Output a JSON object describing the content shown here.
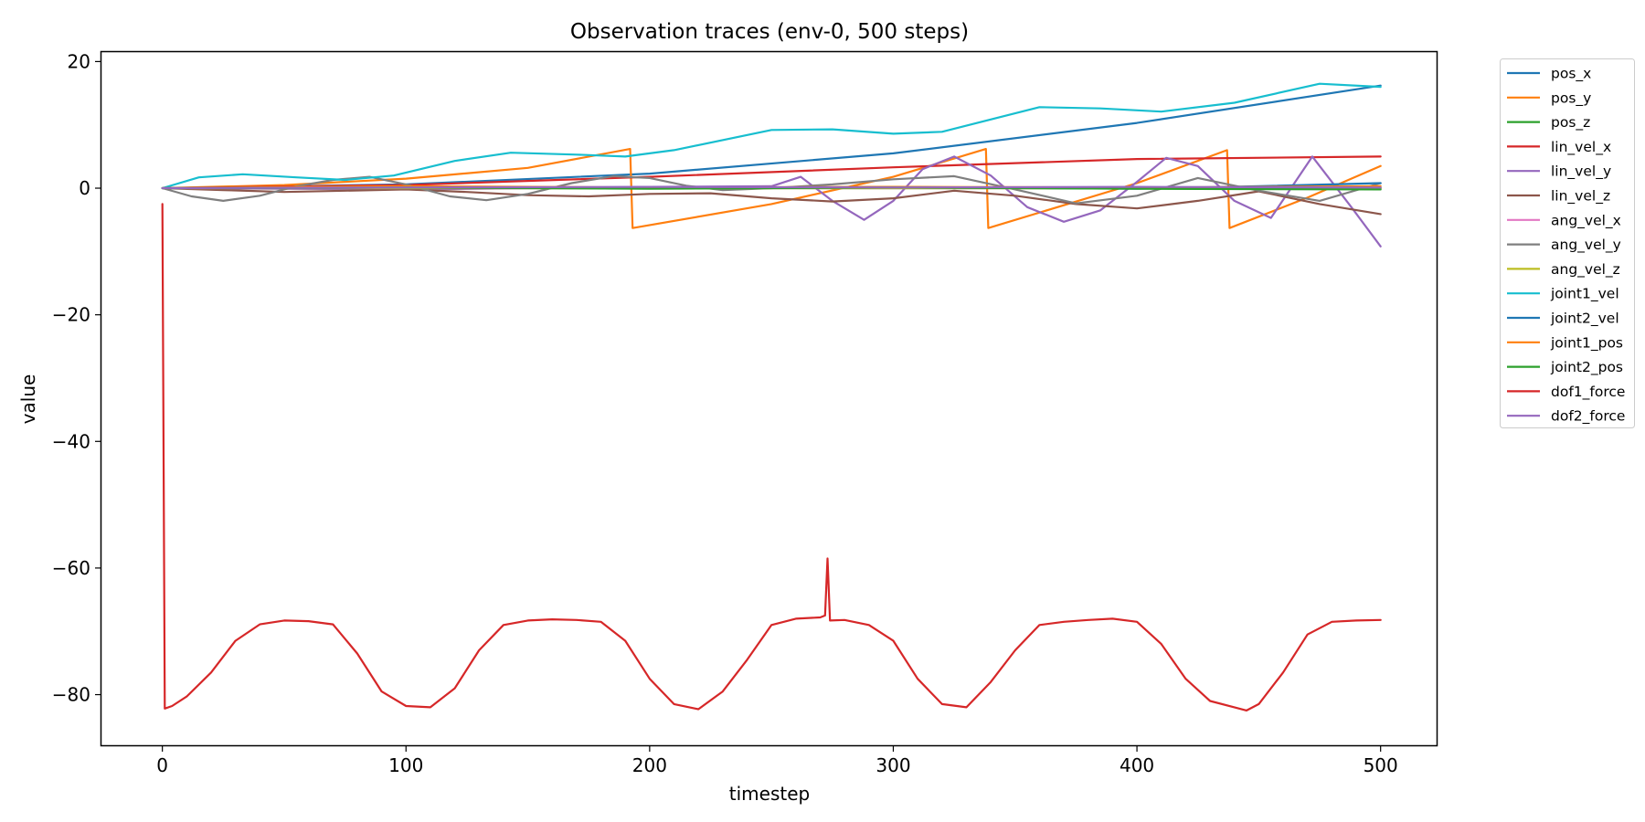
{
  "chart_data": {
    "type": "line",
    "title": "Observation traces (env-0, 500 steps)",
    "xlabel": "timestep",
    "ylabel": "value",
    "xlim": [
      -25,
      523
    ],
    "ylim": [
      -88,
      21.5
    ],
    "xticks": [
      0,
      100,
      200,
      300,
      400,
      500
    ],
    "yticks": [
      20,
      0,
      -20,
      -40,
      -60,
      -80
    ],
    "tick_labels_x": [
      "0",
      "100",
      "200",
      "300",
      "400",
      "500"
    ],
    "tick_labels_y": [
      "20",
      "0",
      "−20",
      "−40",
      "−60",
      "−80"
    ],
    "grid": false,
    "legend_position": "outside-top-right",
    "series": [
      {
        "name": "pos_x",
        "color": "#1f77b4",
        "x": [
          0,
          100,
          200,
          300,
          400,
          500
        ],
        "y": [
          0,
          0.6,
          2.3,
          5.5,
          10.3,
          16.2
        ]
      },
      {
        "name": "pos_y",
        "color": "#ff7f0e",
        "x": [
          0,
          50,
          100,
          150,
          192,
          193,
          250,
          300,
          338,
          339,
          400,
          437,
          438,
          470,
          500
        ],
        "y": [
          0,
          0.5,
          1.5,
          3.2,
          6.2,
          -6.3,
          -2.5,
          1.8,
          6.2,
          -6.3,
          0.8,
          6.0,
          -6.3,
          -1.5,
          3.5
        ]
      },
      {
        "name": "pos_z",
        "color": "#2ca02c",
        "x": [
          0,
          250,
          500
        ],
        "y": [
          0,
          0,
          0
        ]
      },
      {
        "name": "lin_vel_x",
        "color": "#d62728",
        "x": [
          0,
          100,
          200,
          300,
          400,
          500
        ],
        "y": [
          0,
          0.5,
          1.8,
          3.3,
          4.6,
          5.0
        ]
      },
      {
        "name": "lin_vel_y",
        "color": "#9467bd",
        "x": [
          0,
          100,
          200,
          250,
          262,
          275,
          288,
          300,
          312,
          325,
          340,
          355,
          370,
          385,
          400,
          412,
          425,
          440,
          455,
          472,
          488,
          500
        ],
        "y": [
          0,
          -0.2,
          0.2,
          0.3,
          1.8,
          -2.0,
          -5.0,
          -2.0,
          3.0,
          5.0,
          2.0,
          -3.0,
          -5.3,
          -3.5,
          1.0,
          4.8,
          3.5,
          -2.0,
          -4.7,
          5.0,
          -3.0,
          -9.2
        ]
      },
      {
        "name": "lin_vel_z",
        "color": "#8c564b",
        "x": [
          0,
          25,
          50,
          75,
          100,
          125,
          150,
          175,
          200,
          225,
          250,
          275,
          300,
          325,
          350,
          375,
          400,
          425,
          450,
          475,
          500
        ],
        "y": [
          0,
          -0.3,
          -0.6,
          -0.4,
          -0.2,
          -0.6,
          -1.1,
          -1.3,
          -0.9,
          -0.8,
          -1.6,
          -2.1,
          -1.6,
          -0.4,
          -1.2,
          -2.5,
          -3.2,
          -2.0,
          -0.5,
          -2.5,
          -4.1
        ]
      },
      {
        "name": "ang_vel_x",
        "color": "#e377c2",
        "x": [
          0,
          250,
          500
        ],
        "y": [
          0,
          0,
          0
        ]
      },
      {
        "name": "ang_vel_y",
        "color": "#7f7f7f",
        "x": [
          0,
          12,
          25,
          40,
          55,
          70,
          85,
          100,
          118,
          133,
          150,
          168,
          185,
          200,
          215,
          230,
          250,
          275,
          300,
          325,
          350,
          375,
          400,
          425,
          450,
          475,
          500
        ],
        "y": [
          0,
          -1.3,
          -2.0,
          -1.2,
          0.3,
          1.3,
          1.8,
          0.6,
          -1.3,
          -1.9,
          -0.9,
          0.8,
          1.9,
          1.6,
          0.4,
          -0.3,
          0.0,
          0.6,
          1.4,
          1.9,
          -0.2,
          -2.4,
          -1.2,
          1.6,
          -0.4,
          -2.0,
          0.8
        ]
      },
      {
        "name": "ang_vel_z",
        "color": "#bcbd22",
        "x": [
          0,
          250,
          500
        ],
        "y": [
          0,
          0,
          0
        ]
      },
      {
        "name": "joint1_vel",
        "color": "#17becf",
        "x": [
          0,
          15,
          33,
          55,
          75,
          95,
          120,
          143,
          170,
          190,
          210,
          250,
          275,
          300,
          320,
          360,
          385,
          410,
          440,
          475,
          500
        ],
        "y": [
          0,
          1.7,
          2.2,
          1.7,
          1.3,
          2.0,
          4.3,
          5.6,
          5.3,
          5.0,
          6.0,
          9.2,
          9.3,
          8.6,
          8.9,
          12.8,
          12.6,
          12.1,
          13.5,
          16.5,
          16.0
        ]
      },
      {
        "name": "joint2_vel",
        "color": "#1f77b4",
        "x": [
          0,
          100,
          200,
          300,
          400,
          450,
          500
        ],
        "y": [
          0,
          0.1,
          0.05,
          0.2,
          -0.1,
          0.3,
          0.8
        ]
      },
      {
        "name": "joint1_pos",
        "color": "#ff7f0e",
        "x": [
          0,
          100,
          200,
          300,
          400,
          500
        ],
        "y": [
          0,
          0.3,
          0.1,
          0.2,
          0.1,
          0.3
        ]
      },
      {
        "name": "joint2_pos",
        "color": "#2ca02c",
        "x": [
          0,
          100,
          200,
          300,
          400,
          500
        ],
        "y": [
          0,
          0.1,
          -0.1,
          0.1,
          -0.1,
          -0.2
        ]
      },
      {
        "name": "dof1_force",
        "color": "#d62728",
        "x": [
          0,
          1,
          4,
          10,
          20,
          30,
          40,
          50,
          60,
          70,
          80,
          90,
          100,
          110,
          120,
          130,
          140,
          150,
          160,
          170,
          180,
          190,
          200,
          210,
          220,
          230,
          240,
          250,
          260,
          270,
          272,
          273,
          274,
          280,
          290,
          300,
          310,
          320,
          330,
          340,
          350,
          360,
          370,
          380,
          390,
          400,
          410,
          420,
          430,
          440,
          445,
          450,
          460,
          470,
          480,
          490,
          500
        ],
        "y": [
          -2.5,
          -82.2,
          -81.8,
          -80.3,
          -76.5,
          -71.5,
          -68.9,
          -68.3,
          -68.4,
          -68.9,
          -73.5,
          -79.5,
          -81.8,
          -82.0,
          -79.0,
          -73.0,
          -69.0,
          -68.3,
          -68.1,
          -68.2,
          -68.5,
          -71.5,
          -77.5,
          -81.5,
          -82.3,
          -79.5,
          -74.5,
          -69.0,
          -68.0,
          -67.8,
          -67.5,
          -58.5,
          -68.3,
          -68.2,
          -69.0,
          -71.5,
          -77.5,
          -81.5,
          -82.0,
          -78.0,
          -73.0,
          -69.0,
          -68.5,
          -68.2,
          -68.0,
          -68.5,
          -72.0,
          -77.5,
          -81.0,
          -82.0,
          -82.5,
          -81.5,
          -76.5,
          -70.5,
          -68.5,
          -68.3,
          -68.2
        ]
      },
      {
        "name": "dof2_force",
        "color": "#9467bd",
        "x": [
          0,
          100,
          200,
          300,
          400,
          500
        ],
        "y": [
          0,
          0.1,
          0.2,
          0.1,
          0.2,
          0.1
        ]
      }
    ]
  }
}
